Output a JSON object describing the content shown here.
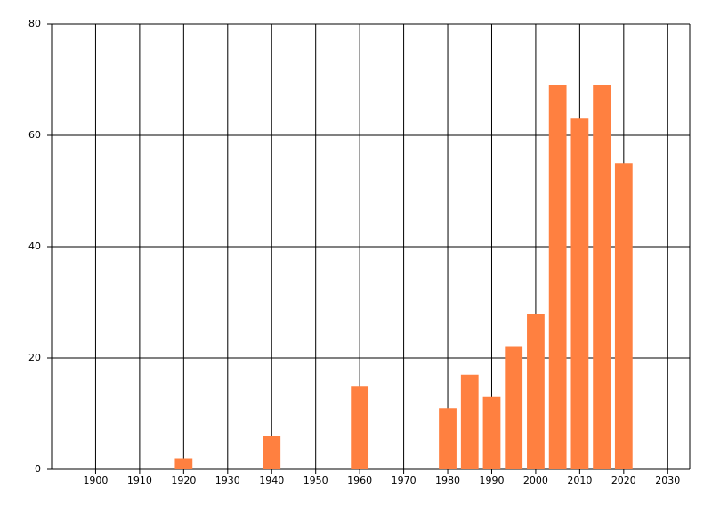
{
  "chart_data": {
    "type": "bar",
    "x": [
      1920,
      1940,
      1960,
      1980,
      1985,
      1990,
      1995,
      2000,
      2005,
      2010,
      2015,
      2020
    ],
    "values": [
      2,
      6,
      15,
      11,
      17,
      13,
      22,
      28,
      69,
      63,
      69,
      55
    ],
    "color": "#ff8040",
    "xlim": [
      1890,
      2035
    ],
    "xticks": [
      1900,
      1910,
      1920,
      1930,
      1940,
      1950,
      1960,
      1970,
      1980,
      1990,
      2000,
      2010,
      2020,
      2030
    ],
    "ylim": [
      0,
      80
    ],
    "yticks": [
      0,
      20,
      40,
      60,
      80
    ],
    "grid": true
  }
}
